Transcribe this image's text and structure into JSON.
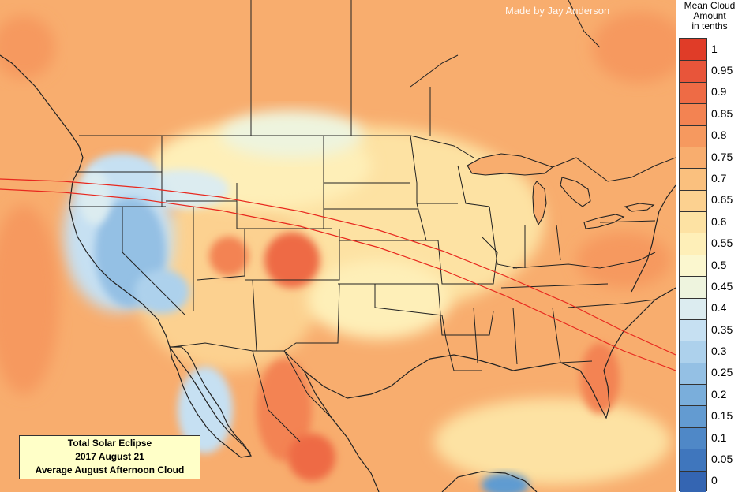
{
  "credit": "Made by Jay Anderson",
  "title_box": {
    "line1": "Total Solar Eclipse",
    "line2": "2017 August 21",
    "line3": "Average August Afternoon Cloud"
  },
  "legend": {
    "title_lines": [
      "Mean Cloud",
      "Amount",
      "in tenths"
    ],
    "levels": [
      {
        "label": "1",
        "color": "#e03c28"
      },
      {
        "label": "0.95",
        "color": "#e8553a"
      },
      {
        "label": "0.9",
        "color": "#ee6b45"
      },
      {
        "label": "0.85",
        "color": "#f38352"
      },
      {
        "label": "0.8",
        "color": "#f6995f"
      },
      {
        "label": "0.75",
        "color": "#f8ad6e"
      },
      {
        "label": "0.7",
        "color": "#fac07e"
      },
      {
        "label": "0.65",
        "color": "#fcd190"
      },
      {
        "label": "0.6",
        "color": "#fde2a3"
      },
      {
        "label": "0.55",
        "color": "#feefb8"
      },
      {
        "label": "0.5",
        "color": "#fbf7cf"
      },
      {
        "label": "0.45",
        "color": "#eef4de"
      },
      {
        "label": "0.4",
        "color": "#dcecf0"
      },
      {
        "label": "0.35",
        "color": "#c6e0f2"
      },
      {
        "label": "0.3",
        "color": "#add1ec"
      },
      {
        "label": "0.25",
        "color": "#94c0e4"
      },
      {
        "label": "0.2",
        "color": "#7aaedb"
      },
      {
        "label": "0.15",
        "color": "#639bd1"
      },
      {
        "label": "0.1",
        "color": "#4f88c7"
      },
      {
        "label": "0.05",
        "color": "#3f76bd"
      },
      {
        "label": "0",
        "color": "#3465b2"
      }
    ]
  },
  "colors": {
    "eclipse_path": "#e8281e",
    "border": "#222222",
    "coast": "#222222"
  }
}
